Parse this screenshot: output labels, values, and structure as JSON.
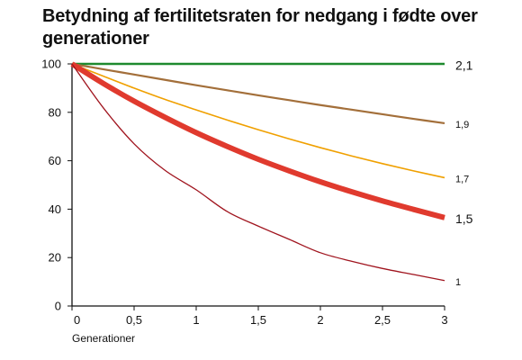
{
  "chart_data": {
    "type": "line",
    "title": "Betydning af fertilitetsraten for nedgang i fødte over generationer",
    "xlabel": "Generationer",
    "ylabel": "",
    "xlim": [
      0,
      3
    ],
    "ylim": [
      0,
      100
    ],
    "x_ticks": [
      0,
      0.5,
      1,
      1.5,
      2,
      2.5,
      3
    ],
    "x_tick_labels": [
      "0",
      "0,5",
      "1",
      "1,5",
      "2",
      "2,5",
      "3"
    ],
    "y_ticks": [
      0,
      20,
      40,
      60,
      80,
      100
    ],
    "y_tick_labels": [
      "0",
      "20",
      "40",
      "60",
      "80",
      "100"
    ],
    "grid": false,
    "x": [
      0,
      0.25,
      0.5,
      0.75,
      1,
      1.25,
      1.5,
      1.75,
      2,
      2.25,
      2.5,
      2.75,
      3
    ],
    "series": [
      {
        "label": "2,1",
        "color": "#1e8a2e",
        "weight": "normal",
        "values": [
          100,
          100,
          100,
          100,
          100,
          100,
          100,
          100,
          100,
          100,
          100,
          100,
          100
        ]
      },
      {
        "label": "1,9",
        "color": "#a36f3a",
        "weight": "small",
        "values": [
          100,
          97.8,
          95.6,
          93.4,
          91.2,
          89.1,
          87.0,
          85.0,
          83.0,
          81.1,
          79.2,
          77.3,
          75.5
        ]
      },
      {
        "label": "1,7",
        "color": "#f0a000",
        "weight": "small",
        "values": [
          100,
          95.0,
          90.0,
          85.3,
          81.0,
          76.8,
          72.8,
          69.0,
          65.4,
          62.0,
          58.8,
          55.8,
          53.0
        ]
      },
      {
        "label": "1,5",
        "color": "#e03a2e",
        "weight": "normal",
        "values": [
          100,
          92.0,
          84.6,
          77.9,
          71.6,
          65.9,
          60.6,
          55.8,
          51.3,
          47.2,
          43.4,
          39.9,
          36.5
        ]
      },
      {
        "label": "1",
        "color": "#a0141e",
        "weight": "small",
        "values": [
          100,
          82.0,
          67.0,
          56.0,
          48.0,
          39.0,
          33.0,
          27.5,
          22.0,
          18.5,
          15.5,
          13.0,
          10.5
        ]
      }
    ]
  }
}
